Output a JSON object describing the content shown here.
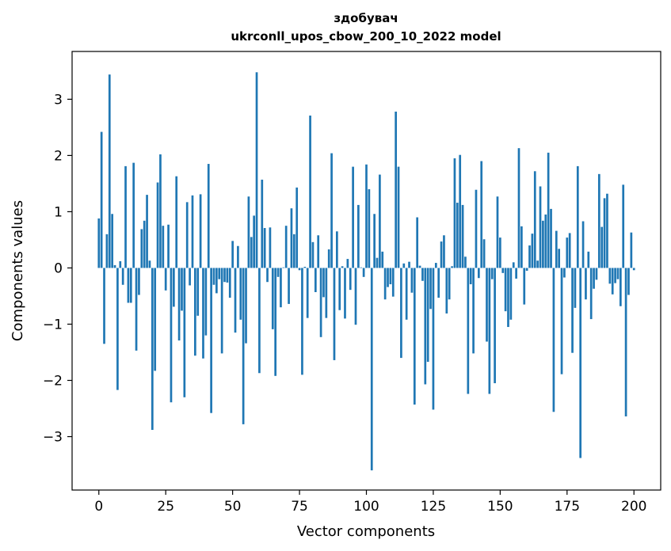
{
  "chart_data": {
    "type": "bar",
    "title": "здобувач",
    "subtitle": "ukrconll_upos_cbow_200_10_2022 model",
    "xlabel": "Vector components",
    "ylabel": "Components values",
    "xlim": [
      -10,
      210
    ],
    "ylim": [
      -3.95,
      3.85
    ],
    "xticks": [
      0,
      25,
      50,
      75,
      100,
      125,
      150,
      175,
      200
    ],
    "yticks": [
      -3,
      -2,
      -1,
      0,
      1,
      2,
      3
    ],
    "grid": false,
    "bar_color": "#1f77b4",
    "values": [
      0.88,
      2.42,
      -1.35,
      0.6,
      3.44,
      0.96,
      0.05,
      -2.17,
      0.12,
      -0.3,
      1.81,
      -0.62,
      -0.62,
      1.87,
      -1.47,
      -0.48,
      0.69,
      0.84,
      1.3,
      0.13,
      -2.88,
      -1.83,
      1.52,
      2.02,
      0.75,
      -0.4,
      0.77,
      -2.39,
      -0.69,
      1.63,
      -1.29,
      -0.76,
      -2.3,
      1.17,
      -0.31,
      1.29,
      -1.56,
      -0.85,
      1.31,
      -1.61,
      -1.2,
      1.85,
      -2.58,
      -0.3,
      -0.45,
      -0.2,
      -1.52,
      -0.25,
      -0.26,
      -0.53,
      0.48,
      -1.15,
      0.39,
      -0.92,
      -2.78,
      -1.34,
      1.27,
      0.55,
      0.93,
      3.48,
      -1.87,
      1.57,
      0.71,
      -0.25,
      0.72,
      -1.09,
      -1.92,
      -0.16,
      -0.7,
      0.01,
      0.75,
      -0.64,
      1.06,
      0.6,
      1.43,
      -0.04,
      -1.9,
      0.02,
      -0.89,
      2.71,
      0.46,
      -0.43,
      0.58,
      -1.23,
      -0.52,
      -0.89,
      0.33,
      2.04,
      -1.64,
      0.65,
      -0.75,
      0.03,
      -0.9,
      0.16,
      -0.39,
      1.8,
      -1.01,
      1.12,
      0.01,
      -0.16,
      1.84,
      1.4,
      -3.6,
      0.96,
      0.18,
      1.66,
      0.29,
      -0.56,
      -0.34,
      -0.29,
      -0.51,
      2.78,
      1.8,
      -1.6,
      0.08,
      -0.92,
      0.11,
      -0.44,
      -2.43,
      0.9,
      0.04,
      -0.23,
      -2.07,
      -1.67,
      -0.73,
      -2.52,
      0.09,
      -0.53,
      0.47,
      0.58,
      -0.81,
      -0.56,
      0.03,
      1.95,
      1.16,
      2.01,
      1.12,
      0.2,
      -2.24,
      -0.29,
      -1.52,
      1.39,
      -0.18,
      1.9,
      0.51,
      -1.31,
      -2.24,
      -0.2,
      -2.05,
      1.27,
      0.54,
      -0.09,
      -0.77,
      -1.05,
      -0.92,
      0.1,
      -0.19,
      2.13,
      0.74,
      -0.65,
      -0.05,
      0.4,
      0.61,
      1.72,
      0.13,
      1.45,
      0.84,
      0.95,
      2.05,
      1.05,
      -2.56,
      0.66,
      0.34,
      -1.89,
      -0.17,
      0.54,
      0.62,
      -1.51,
      -0.71,
      1.81,
      -3.38,
      0.83,
      -0.56,
      0.29,
      -0.91,
      -0.37,
      -0.21,
      1.67,
      0.73,
      1.24,
      1.32,
      -0.28,
      -0.47,
      -0.27,
      -0.2,
      -0.68,
      1.48,
      -2.64,
      -0.48,
      0.63,
      -0.04
    ]
  }
}
